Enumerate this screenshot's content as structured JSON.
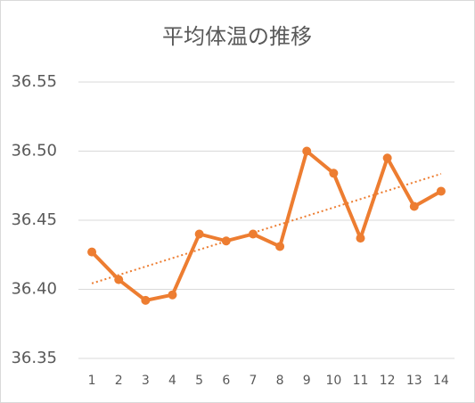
{
  "chart_data": {
    "type": "line",
    "title": "平均体温の推移",
    "categories": [
      "1",
      "2",
      "3",
      "4",
      "5",
      "6",
      "7",
      "8",
      "9",
      "10",
      "11",
      "12",
      "13",
      "14"
    ],
    "values": [
      36.427,
      36.407,
      36.392,
      36.396,
      36.44,
      36.435,
      36.44,
      36.431,
      36.5,
      36.484,
      36.437,
      36.495,
      36.46,
      36.471
    ],
    "color": "#ED7D31",
    "ylim": [
      36.35,
      36.55
    ],
    "yticks": [
      36.35,
      {
        "value": 36.4,
        "label": "36.40"
      },
      36.45,
      {
        "value": 36.5,
        "label": "36.50"
      },
      36.55
    ],
    "grid": true,
    "trendline": true
  }
}
